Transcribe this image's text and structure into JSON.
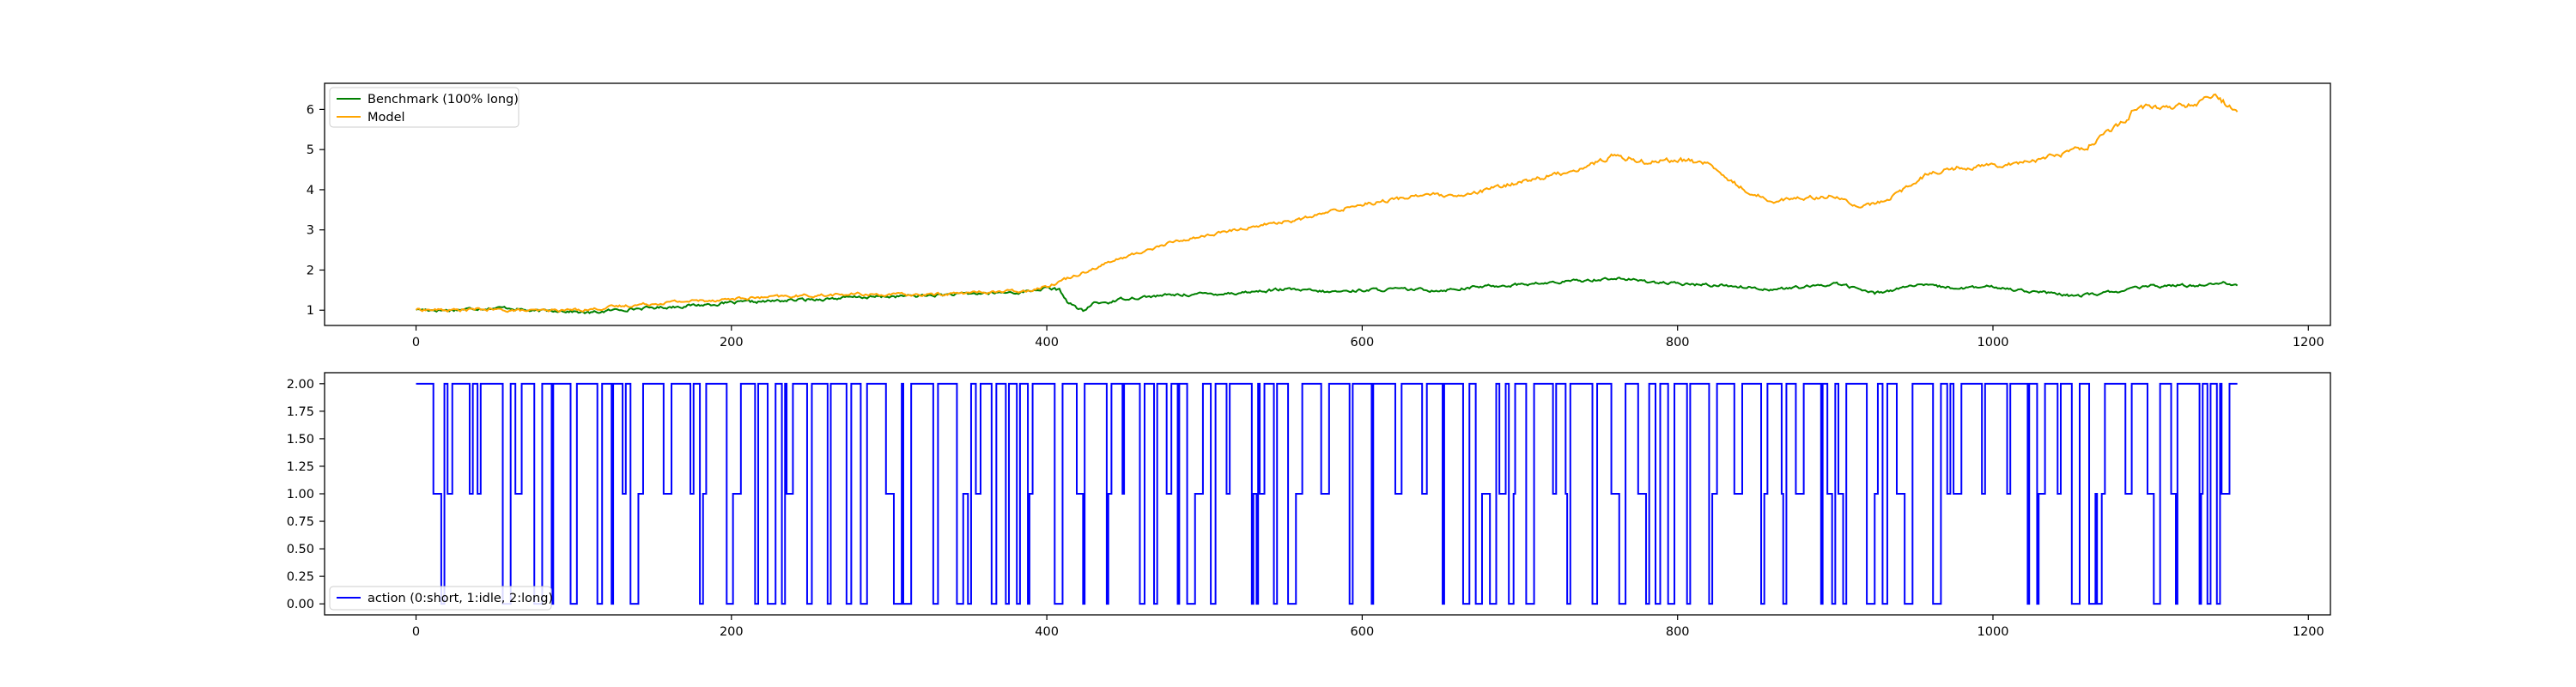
{
  "chart_data": [
    {
      "type": "line",
      "title": "",
      "xlabel": "",
      "ylabel": "",
      "xlim": [
        -58,
        1214
      ],
      "ylim": [
        0.62,
        6.65
      ],
      "xticks": [
        0,
        200,
        400,
        600,
        800,
        1000,
        1200
      ],
      "yticks": [
        1,
        2,
        3,
        4,
        5,
        6
      ],
      "grid": false,
      "legend": {
        "placement": "upper-left"
      },
      "x_range": [
        0,
        1155
      ],
      "series": [
        {
          "name": "Benchmark (100% long)",
          "color": "#008000",
          "keypoints": [
            [
              0,
              1.02
            ],
            [
              20,
              1.0
            ],
            [
              40,
              1.05
            ],
            [
              60,
              1.06
            ],
            [
              75,
              0.97
            ],
            [
              90,
              1.0
            ],
            [
              110,
              0.93
            ],
            [
              130,
              1.02
            ],
            [
              160,
              1.08
            ],
            [
              200,
              1.18
            ],
            [
              240,
              1.25
            ],
            [
              280,
              1.32
            ],
            [
              320,
              1.36
            ],
            [
              360,
              1.42
            ],
            [
              385,
              1.45
            ],
            [
              400,
              1.55
            ],
            [
              408,
              1.5
            ],
            [
              413,
              1.22
            ],
            [
              418,
              1.08
            ],
            [
              423,
              0.97
            ],
            [
              430,
              1.18
            ],
            [
              440,
              1.2
            ],
            [
              450,
              1.3
            ],
            [
              480,
              1.38
            ],
            [
              520,
              1.43
            ],
            [
              550,
              1.52
            ],
            [
              580,
              1.45
            ],
            [
              600,
              1.5
            ],
            [
              620,
              1.52
            ],
            [
              650,
              1.5
            ],
            [
              680,
              1.6
            ],
            [
              720,
              1.68
            ],
            [
              760,
              1.8
            ],
            [
              780,
              1.72
            ],
            [
              800,
              1.65
            ],
            [
              830,
              1.62
            ],
            [
              860,
              1.52
            ],
            [
              890,
              1.6
            ],
            [
              900,
              1.68
            ],
            [
              925,
              1.42
            ],
            [
              950,
              1.62
            ],
            [
              980,
              1.55
            ],
            [
              1000,
              1.58
            ],
            [
              1030,
              1.45
            ],
            [
              1050,
              1.35
            ],
            [
              1070,
              1.42
            ],
            [
              1100,
              1.6
            ],
            [
              1130,
              1.62
            ],
            [
              1145,
              1.7
            ],
            [
              1155,
              1.62
            ]
          ]
        },
        {
          "name": "Model",
          "color": "#ffa500",
          "keypoints": [
            [
              0,
              1.02
            ],
            [
              20,
              1.0
            ],
            [
              40,
              1.02
            ],
            [
              60,
              1.0
            ],
            [
              75,
              0.98
            ],
            [
              90,
              1.0
            ],
            [
              110,
              1.02
            ],
            [
              130,
              1.1
            ],
            [
              160,
              1.2
            ],
            [
              200,
              1.28
            ],
            [
              240,
              1.35
            ],
            [
              280,
              1.4
            ],
            [
              320,
              1.38
            ],
            [
              360,
              1.45
            ],
            [
              385,
              1.48
            ],
            [
              400,
              1.6
            ],
            [
              420,
              1.9
            ],
            [
              440,
              2.2
            ],
            [
              460,
              2.45
            ],
            [
              480,
              2.7
            ],
            [
              500,
              2.85
            ],
            [
              520,
              3.0
            ],
            [
              540,
              3.15
            ],
            [
              560,
              3.25
            ],
            [
              580,
              3.45
            ],
            [
              600,
              3.65
            ],
            [
              620,
              3.75
            ],
            [
              640,
              3.9
            ],
            [
              660,
              3.8
            ],
            [
              680,
              4.0
            ],
            [
              700,
              4.2
            ],
            [
              720,
              4.35
            ],
            [
              740,
              4.55
            ],
            [
              760,
              4.85
            ],
            [
              780,
              4.7
            ],
            [
              800,
              4.75
            ],
            [
              820,
              4.65
            ],
            [
              830,
              4.3
            ],
            [
              845,
              3.95
            ],
            [
              860,
              3.72
            ],
            [
              880,
              3.8
            ],
            [
              900,
              3.85
            ],
            [
              915,
              3.55
            ],
            [
              930,
              3.7
            ],
            [
              950,
              4.15
            ],
            [
              960,
              4.45
            ],
            [
              980,
              4.55
            ],
            [
              1000,
              4.62
            ],
            [
              1020,
              4.7
            ],
            [
              1040,
              4.85
            ],
            [
              1060,
              5.1
            ],
            [
              1080,
              5.6
            ],
            [
              1090,
              6.0
            ],
            [
              1100,
              6.05
            ],
            [
              1115,
              6.05
            ],
            [
              1130,
              6.15
            ],
            [
              1140,
              6.35
            ],
            [
              1155,
              5.95
            ]
          ]
        }
      ]
    },
    {
      "type": "line",
      "title": "",
      "xlabel": "",
      "ylabel": "",
      "xlim": [
        -58,
        1214
      ],
      "ylim": [
        -0.1,
        2.1
      ],
      "xticks": [
        0,
        200,
        400,
        600,
        800,
        1000,
        1200
      ],
      "yticks": [
        0.0,
        0.25,
        0.5,
        0.75,
        1.0,
        1.25,
        1.5,
        1.75,
        2.0
      ],
      "ytick_labels": [
        "0.00",
        "0.25",
        "0.50",
        "0.75",
        "1.00",
        "1.25",
        "1.50",
        "1.75",
        "2.00"
      ],
      "xtick_labels": [
        "0",
        "200",
        "400",
        "600",
        "800",
        "1000",
        "1200"
      ],
      "grid": false,
      "legend": {
        "placement": "lower-left"
      },
      "x_range": [
        0,
        1155
      ],
      "series": [
        {
          "name": "action (0:short, 1:idle, 2:long)",
          "color": "#0000ff",
          "drawstyle": "steps",
          "approximate_pattern": "discrete actions switching frequently between 0, 1 and 2, mostly 2"
        }
      ]
    }
  ],
  "top_xtick_labels": [
    "0",
    "200",
    "400",
    "600",
    "800",
    "1000",
    "1200"
  ],
  "top_ytick_labels": [
    "1",
    "2",
    "3",
    "4",
    "5",
    "6"
  ]
}
